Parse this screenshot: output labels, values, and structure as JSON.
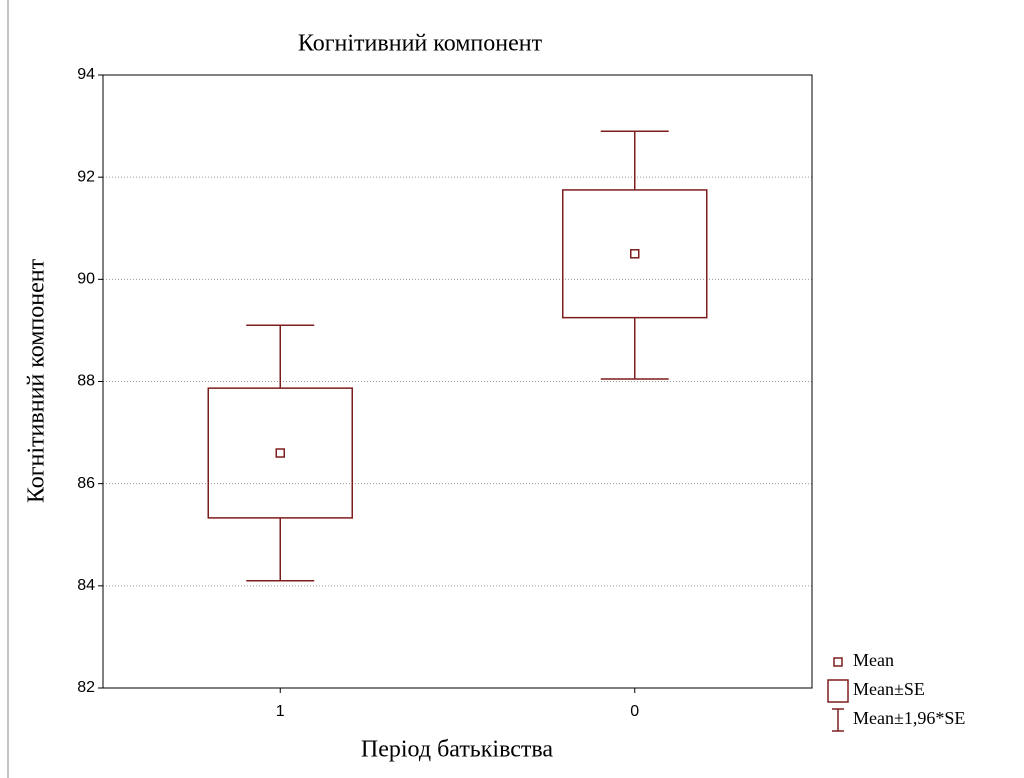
{
  "chart_data": {
    "type": "box",
    "title": "Когнітивний компонент",
    "x_label": "Період батьківства",
    "y_label": "Когнітивний компонент",
    "categories": [
      "1",
      "0"
    ],
    "mean": [
      86.6,
      90.5
    ],
    "se_low": [
      85.33,
      89.25
    ],
    "se_high": [
      87.87,
      91.75
    ],
    "ci_low": [
      84.1,
      88.05
    ],
    "ci_high": [
      89.1,
      92.9
    ],
    "ylim": [
      82,
      94
    ],
    "yticks": [
      82,
      84,
      86,
      88,
      90,
      92,
      94
    ],
    "grid": true,
    "color": "#7f1d1d",
    "legend": [
      "Mean",
      "Mean±SE",
      "Mean±1,96*SE"
    ],
    "legend_position": "lower right"
  }
}
